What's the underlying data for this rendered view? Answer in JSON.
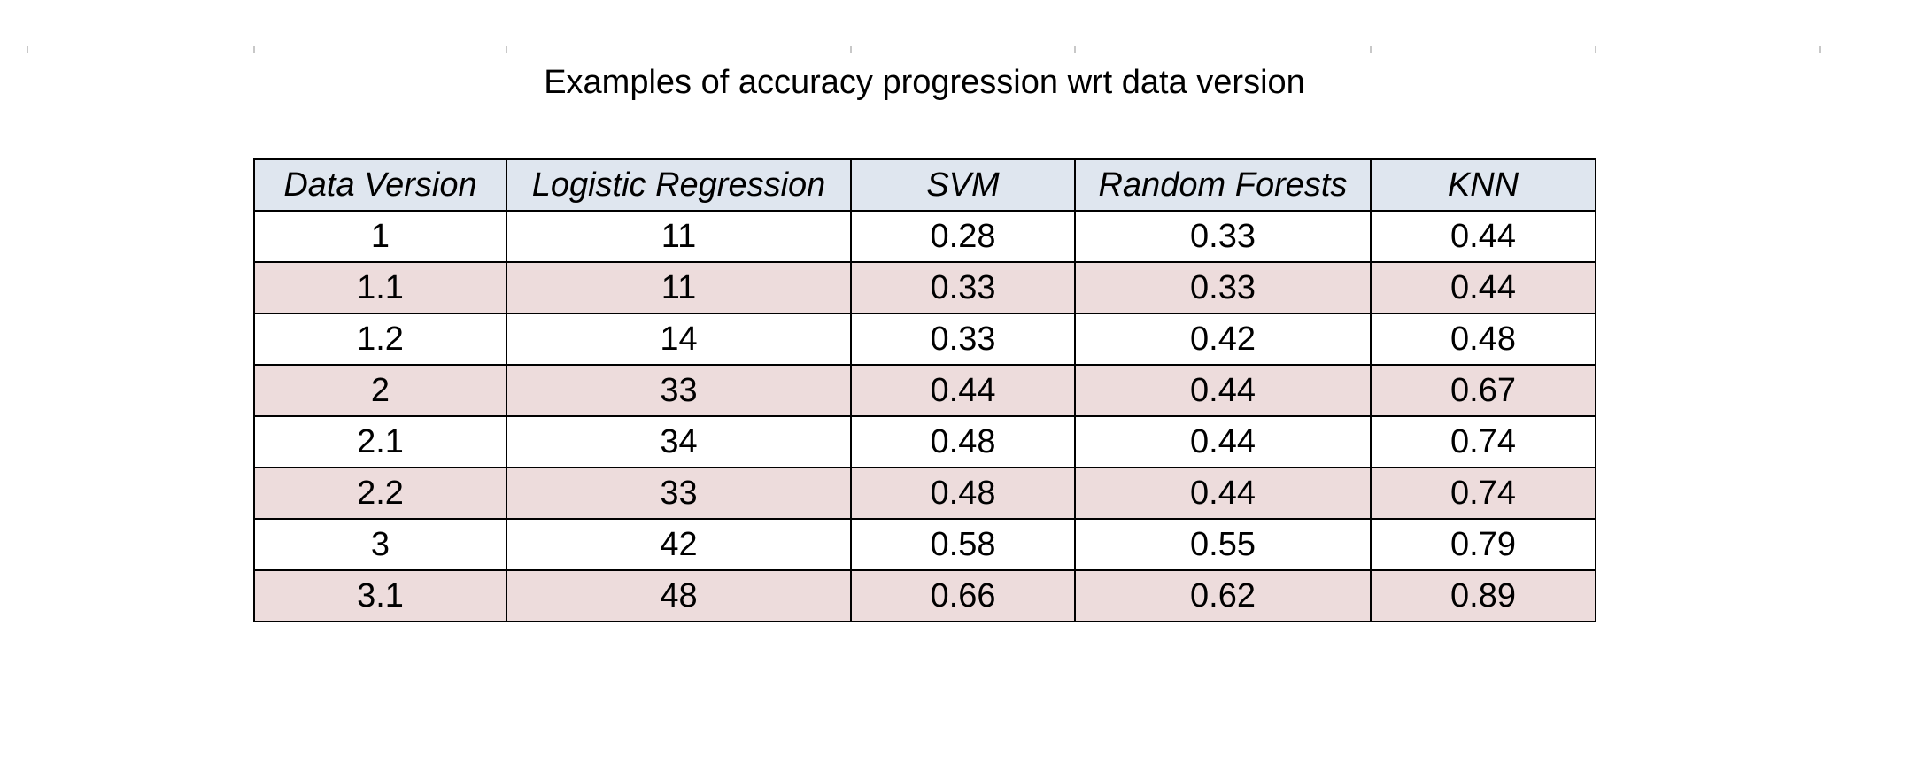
{
  "title": "Examples of accuracy progression wrt data version",
  "table": {
    "columns": [
      "Data Version",
      "Logistic Regression",
      "SVM",
      "Random Forests",
      "KNN"
    ],
    "rows": [
      [
        "1",
        "11",
        "0.28",
        "0.33",
        "0.44"
      ],
      [
        "1.1",
        "11",
        "0.33",
        "0.33",
        "0.44"
      ],
      [
        "1.2",
        "14",
        "0.33",
        "0.42",
        "0.48"
      ],
      [
        "2",
        "33",
        "0.44",
        "0.44",
        "0.67"
      ],
      [
        "2.1",
        "34",
        "0.48",
        "0.44",
        "0.74"
      ],
      [
        "2.2",
        "33",
        "0.48",
        "0.44",
        "0.74"
      ],
      [
        "3",
        "42",
        "0.58",
        "0.55",
        "0.79"
      ],
      [
        "3.1",
        "48",
        "0.66",
        "0.62",
        "0.89"
      ]
    ]
  },
  "colors": {
    "header_fill": "#dfe6ef",
    "alt_row_fill": "#eddcdc",
    "row_fill": "#ffffff",
    "border": "#000000"
  }
}
